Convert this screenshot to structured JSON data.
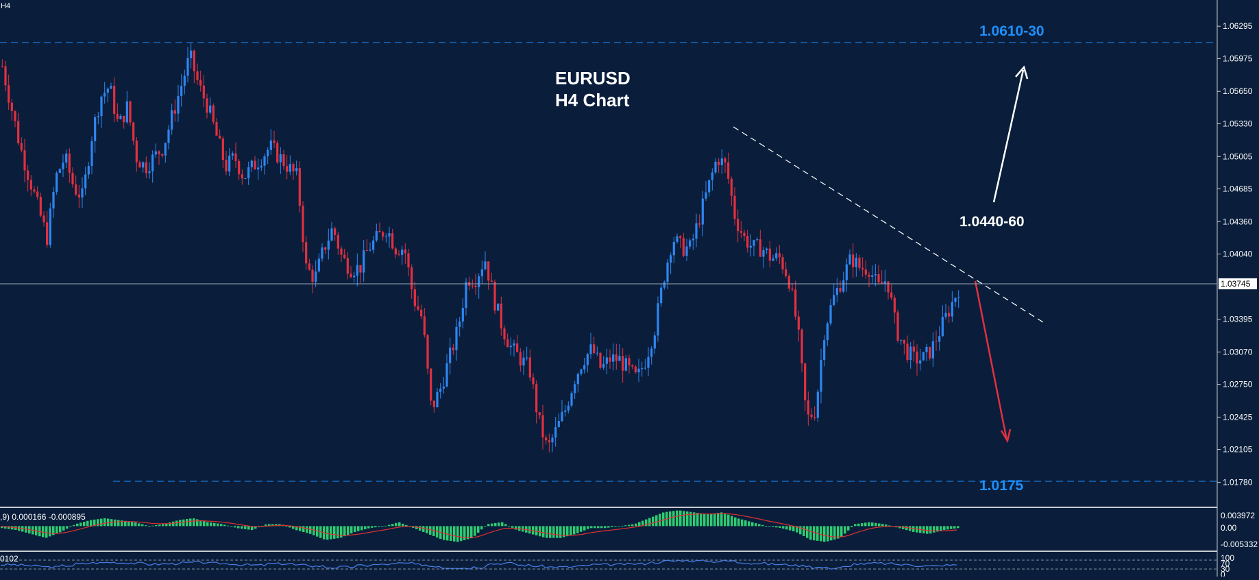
{
  "chart_data": {
    "type": "candlestick",
    "symbol_label": "H4",
    "title_line1": "EURUSD",
    "title_line2": "H4 Chart",
    "ylim": [
      1.016,
      1.065
    ],
    "y_ticks": [
      "1.06295",
      "1.05975",
      "1.05650",
      "1.05330",
      "1.05005",
      "1.04685",
      "1.04360",
      "1.04040",
      "1.03395",
      "1.03070",
      "1.02750",
      "1.02425",
      "1.02105",
      "1.01780"
    ],
    "current_price_label": "1.03745",
    "current_price": 1.03745,
    "levels": [
      {
        "label": "1.0610-30",
        "price": 1.0613,
        "color": "#1e90ff"
      },
      {
        "label": "1.0175",
        "price": 1.0179,
        "color": "#1e90ff"
      }
    ],
    "pivot_label": "1.0440-60",
    "colors": {
      "background": "#0a1e3b",
      "bull": "#2e86f0",
      "bear": "#e3303f",
      "macd_hist": "#2ecc71",
      "signal": "#e03030",
      "rsi": "#4a7ee8",
      "level": "#1e90ff",
      "axis_text": "#ffffff"
    },
    "candles_approx": [
      1.059,
      1.055,
      1.051,
      1.048,
      1.045,
      1.042,
      1.048,
      1.05,
      1.047,
      1.046,
      1.052,
      1.056,
      1.057,
      1.053,
      1.055,
      1.05,
      1.049,
      1.05,
      1.051,
      1.054,
      1.057,
      1.06,
      1.057,
      1.055,
      1.052,
      1.049,
      1.05,
      1.048,
      1.049,
      1.05,
      1.051,
      1.05,
      1.049,
      1.048,
      1.039,
      1.038,
      1.041,
      1.043,
      1.04,
      1.039,
      1.039,
      1.041,
      1.042,
      1.043,
      1.041,
      1.041,
      1.036,
      1.034,
      1.025,
      1.027,
      1.03,
      1.033,
      1.038,
      1.038,
      1.04,
      1.036,
      1.033,
      1.031,
      1.03,
      1.029,
      1.024,
      1.021,
      1.023,
      1.025,
      1.028,
      1.03,
      1.031,
      1.029,
      1.03,
      1.03,
      1.029,
      1.028,
      1.03,
      1.033,
      1.038,
      1.042,
      1.041,
      1.041,
      1.044,
      1.047,
      1.05,
      1.049,
      1.044,
      1.042,
      1.041,
      1.041,
      1.04,
      1.04,
      1.038,
      1.033,
      1.024,
      1.025,
      1.033,
      1.036,
      1.038,
      1.04,
      1.039,
      1.039,
      1.037,
      1.038,
      1.033,
      1.031,
      1.03,
      1.03,
      1.031,
      1.033,
      1.035,
      1.037
    ],
    "macd": {
      "label": ",9) 0.000166 -0.000895",
      "ticks": [
        "0.003972",
        "0.00",
        "-0.005332"
      ],
      "range": [
        -0.006,
        0.0044
      ],
      "hist_approx": [
        -0.0005,
        -0.001,
        -0.002,
        -0.003,
        -0.0015,
        0.0005,
        0.0015,
        0.002,
        0.0015,
        0.001,
        0.0,
        0.0005,
        0.0015,
        0.002,
        0.001,
        0.0005,
        -0.0005,
        -0.001,
        0.0005,
        0.0005,
        -0.001,
        -0.002,
        -0.0035,
        -0.003,
        -0.0015,
        -0.0005,
        0.0,
        0.001,
        -0.0005,
        -0.002,
        -0.0035,
        -0.004,
        -0.003,
        0.0005,
        0.001,
        -0.001,
        -0.002,
        -0.003,
        -0.003,
        -0.002,
        -0.0005,
        -0.0005,
        0.0,
        0.0005,
        0.002,
        0.0035,
        0.004,
        0.0035,
        0.003,
        0.0035,
        0.002,
        0.001,
        0.0,
        -0.0005,
        -0.0015,
        -0.0035,
        -0.004,
        -0.003,
        0.0005,
        0.001,
        0.0005,
        -0.0005,
        -0.0015,
        -0.002,
        -0.001,
        -0.0005
      ]
    },
    "rsi": {
      "label": "0102",
      "ticks": [
        "100",
        "70",
        "30",
        "0"
      ],
      "range": [
        0,
        100
      ]
    }
  }
}
